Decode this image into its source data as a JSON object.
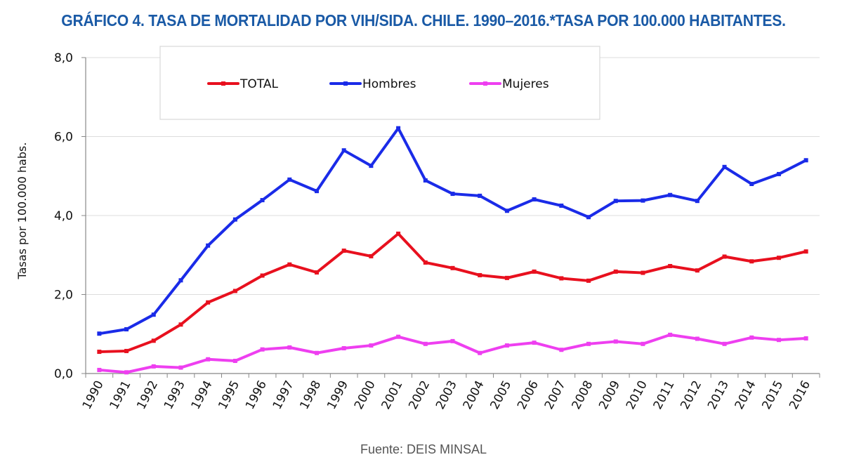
{
  "title": "GRÁFICO 4. TASA DE MORTALIDAD POR VIH/SIDA. CHILE. 1990–2016.*TASA POR 100.000 HABITANTES.",
  "source": "Fuente: DEIS MINSAL",
  "chart_data": {
    "type": "line",
    "title": "GRÁFICO 4. TASA DE MORTALIDAD POR VIH/SIDA. CHILE. 1990–2016.*TASA POR 100.000 HABITANTES.",
    "xlabel": "",
    "ylabel": "Tasas por 100.000 habs.",
    "ylim": [
      0,
      8
    ],
    "yticks": [
      "0,0",
      "2,0",
      "4,0",
      "6,0",
      "8,0"
    ],
    "ytick_values": [
      0,
      2,
      4,
      6,
      8
    ],
    "grid": true,
    "legend_position": "top-center",
    "categories": [
      "1990",
      "1991",
      "1992",
      "1993",
      "1994",
      "1995",
      "1996",
      "1997",
      "1998",
      "1999",
      "2000",
      "2001",
      "2002",
      "2003",
      "2004",
      "2005",
      "2006",
      "2007",
      "2008",
      "2009",
      "2010",
      "2011",
      "2012",
      "2013",
      "2014",
      "2015",
      "2016"
    ],
    "series": [
      {
        "name": "TOTAL",
        "color": "#e8101e",
        "values": [
          0.55,
          0.57,
          0.83,
          1.24,
          1.8,
          2.09,
          2.48,
          2.76,
          2.56,
          3.11,
          2.97,
          3.54,
          2.81,
          2.67,
          2.49,
          2.42,
          2.58,
          2.41,
          2.35,
          2.58,
          2.55,
          2.72,
          2.61,
          2.96,
          2.84,
          2.93,
          3.09
        ]
      },
      {
        "name": "Hombres",
        "color": "#1a2be8",
        "values": [
          1.01,
          1.12,
          1.49,
          2.36,
          3.24,
          3.9,
          4.39,
          4.91,
          4.62,
          5.65,
          5.26,
          6.21,
          4.89,
          4.55,
          4.5,
          4.12,
          4.41,
          4.25,
          3.96,
          4.37,
          4.38,
          4.52,
          4.37,
          5.23,
          4.8,
          5.05,
          5.4
        ]
      },
      {
        "name": "Mujeres",
        "color": "#ee3ff0",
        "values": [
          0.09,
          0.03,
          0.18,
          0.15,
          0.36,
          0.32,
          0.61,
          0.66,
          0.52,
          0.64,
          0.71,
          0.93,
          0.75,
          0.82,
          0.52,
          0.71,
          0.78,
          0.6,
          0.75,
          0.81,
          0.75,
          0.98,
          0.88,
          0.75,
          0.91,
          0.85,
          0.89
        ]
      }
    ]
  }
}
